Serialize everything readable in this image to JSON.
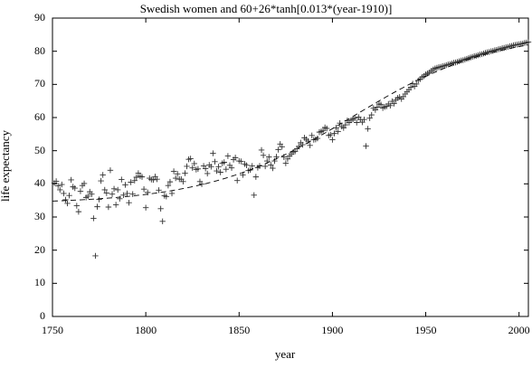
{
  "chart_data": {
    "type": "scatter",
    "title": "Swedish women and 60+26*tanh[0.013*(year-1910)]",
    "xlabel": "year",
    "ylabel": "life expectancy",
    "xlim": [
      1750,
      2005
    ],
    "ylim": [
      0,
      90
    ],
    "xticks": [
      1750,
      1800,
      1850,
      1900,
      1950,
      2000
    ],
    "yticks": [
      0,
      10,
      20,
      30,
      40,
      50,
      60,
      70,
      80,
      90
    ],
    "grid": false,
    "legend": "none",
    "series": [
      {
        "marker": "plus",
        "style": "points",
        "x": [
          1751,
          1752,
          1753,
          1754,
          1755,
          1756,
          1757,
          1758,
          1759,
          1760,
          1761,
          1762,
          1763,
          1764,
          1765,
          1766,
          1767,
          1768,
          1769,
          1770,
          1771,
          1772,
          1773,
          1774,
          1775,
          1776,
          1777,
          1778,
          1779,
          1780,
          1781,
          1782,
          1783,
          1784,
          1785,
          1786,
          1787,
          1788,
          1789,
          1790,
          1791,
          1792,
          1793,
          1794,
          1795,
          1796,
          1797,
          1798,
          1799,
          1800,
          1801,
          1802,
          1803,
          1804,
          1805,
          1806,
          1807,
          1808,
          1809,
          1810,
          1811,
          1812,
          1813,
          1814,
          1815,
          1816,
          1817,
          1818,
          1819,
          1820,
          1821,
          1822,
          1823,
          1824,
          1825,
          1826,
          1827,
          1828,
          1829,
          1830,
          1831,
          1832,
          1833,
          1834,
          1835,
          1836,
          1837,
          1838,
          1839,
          1840,
          1841,
          1842,
          1843,
          1844,
          1845,
          1846,
          1847,
          1848,
          1849,
          1850,
          1851,
          1852,
          1853,
          1854,
          1855,
          1856,
          1857,
          1858,
          1859,
          1860,
          1861,
          1862,
          1863,
          1864,
          1865,
          1866,
          1867,
          1868,
          1869,
          1870,
          1871,
          1872,
          1873,
          1874,
          1875,
          1876,
          1877,
          1878,
          1879,
          1880,
          1881,
          1882,
          1883,
          1884,
          1885,
          1886,
          1887,
          1888,
          1889,
          1890,
          1891,
          1892,
          1893,
          1894,
          1895,
          1896,
          1897,
          1898,
          1899,
          1900,
          1901,
          1902,
          1903,
          1904,
          1905,
          1906,
          1907,
          1908,
          1909,
          1910,
          1911,
          1912,
          1913,
          1914,
          1915,
          1916,
          1917,
          1918,
          1919,
          1920,
          1921,
          1922,
          1923,
          1924,
          1925,
          1926,
          1927,
          1928,
          1929,
          1930,
          1931,
          1932,
          1933,
          1934,
          1935,
          1936,
          1937,
          1938,
          1939,
          1940,
          1941,
          1942,
          1943,
          1944,
          1945,
          1946,
          1947,
          1948,
          1949,
          1950,
          1951,
          1952,
          1953,
          1954,
          1955,
          1956,
          1957,
          1958,
          1959,
          1960,
          1961,
          1962,
          1963,
          1964,
          1965,
          1966,
          1967,
          1968,
          1969,
          1970,
          1971,
          1972,
          1973,
          1974,
          1975,
          1976,
          1977,
          1978,
          1979,
          1980,
          1981,
          1982,
          1983,
          1984,
          1985,
          1986,
          1987,
          1988,
          1989,
          1990,
          1991,
          1992,
          1993,
          1994,
          1995,
          1996,
          1997,
          1998,
          1999,
          2000,
          2001,
          2002,
          2003,
          2004,
          2005
        ],
        "y": [
          40.2,
          40.8,
          39.4,
          38.2,
          39.8,
          37.1,
          35.2,
          34.1,
          36.5,
          41.2,
          39.1,
          38.7,
          33.4,
          31.6,
          37.8,
          39.5,
          40.1,
          35.9,
          36.3,
          37.6,
          36.9,
          29.6,
          18.3,
          33.1,
          35.3,
          40.9,
          42.7,
          38.2,
          37.2,
          33.0,
          44.1,
          36.9,
          38.5,
          33.7,
          38.2,
          35.5,
          41.3,
          36.6,
          39.7,
          37.1,
          34.3,
          40.5,
          36.9,
          41.0,
          42.0,
          43.2,
          42.3,
          42.1,
          38.4,
          32.8,
          37.4,
          41.7,
          41.3,
          41.2,
          42.2,
          41.4,
          38.1,
          32.5,
          28.7,
          36.4,
          36.2,
          39.5,
          40.6,
          37.1,
          43.8,
          41.7,
          43.0,
          41.4,
          41.4,
          40.7,
          43.2,
          45.3,
          47.4,
          47.6,
          44.8,
          46.1,
          44.3,
          44.5,
          40.7,
          39.9,
          45.4,
          44.6,
          43.1,
          45.7,
          45.2,
          49.2,
          46.7,
          43.9,
          45.2,
          43.5,
          46.2,
          46.5,
          44.4,
          48.4,
          45.6,
          44.8,
          47.3,
          47.9,
          41.0,
          46.9,
          46.8,
          42.7,
          46.0,
          45.6,
          44.0,
          44.2,
          45.4,
          36.6,
          42.1,
          44.9,
          45.4,
          50.2,
          48.6,
          45.3,
          46.9,
          48.1,
          45.7,
          44.7,
          46.9,
          48.2,
          50.3,
          52.0,
          51.2,
          48.1,
          46.2,
          47.5,
          48.4,
          49.0,
          49.6,
          49.8,
          50.6,
          51.3,
          52.4,
          51.8,
          53.9,
          53.4,
          52.9,
          51.6,
          54.6,
          53.3,
          53.4,
          53.7,
          55.6,
          55.8,
          56.1,
          57.0,
          56.7,
          54.6,
          54.8,
          53.3,
          55.2,
          56.9,
          55.8,
          58.3,
          57.3,
          56.9,
          57.8,
          59.1,
          58.5,
          59.2,
          59.5,
          59.8,
          58.5,
          60.1,
          59.4,
          58.6,
          59.4,
          51.4,
          56.6,
          59.8,
          60.8,
          62.8,
          62.3,
          63.1,
          64.1,
          63.9,
          62.9,
          63.2,
          63.4,
          64.1,
          63.6,
          64.9,
          64.2,
          65.3,
          65.9,
          66.2,
          65.6,
          66.3,
          67.1,
          67.8,
          68.4,
          69.1,
          70.2,
          69.4,
          70.1,
          71.2,
          71.6,
          72.2,
          72.5,
          73.0,
          73.3,
          73.6,
          74.1,
          74.5,
          74.8,
          75.0,
          75.2,
          75.3,
          75.5,
          75.6,
          75.8,
          76.0,
          76.1,
          76.3,
          76.5,
          76.6,
          76.8,
          77.0,
          77.2,
          77.3,
          77.5,
          77.7,
          77.9,
          78.1,
          78.3,
          78.5,
          78.6,
          78.8,
          79.0,
          79.1,
          79.3,
          79.5,
          79.7,
          79.8,
          80.0,
          80.1,
          80.3,
          80.4,
          80.6,
          80.7,
          80.9,
          81.0,
          81.2,
          81.3,
          81.5,
          81.6,
          81.8,
          81.9,
          82.0,
          82.1,
          82.2,
          82.3,
          82.5,
          82.6,
          82.8
        ]
      },
      {
        "style": "dashed-line",
        "formula": "60+26*tanh[0.013*(year-1910)]"
      }
    ]
  }
}
